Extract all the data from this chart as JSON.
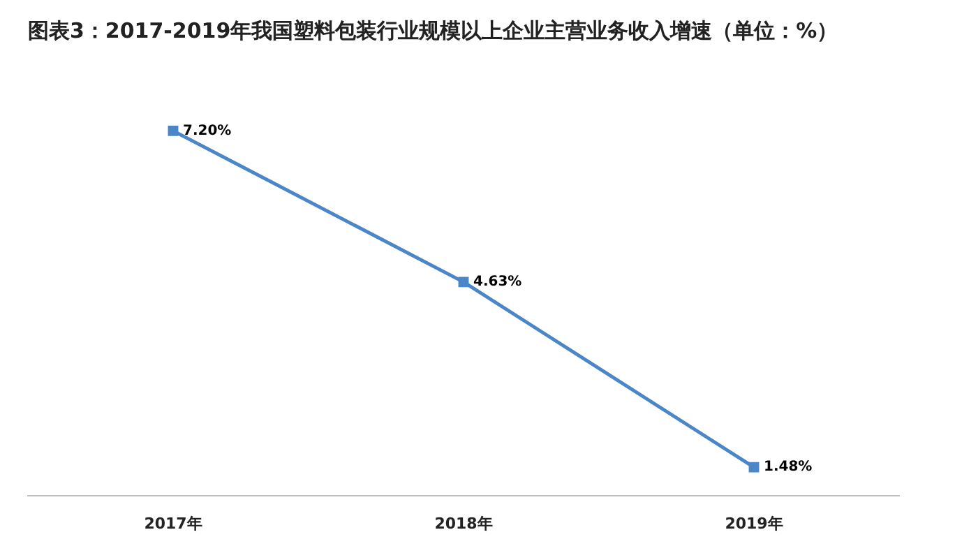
{
  "chart_data": {
    "type": "line",
    "title": "图表3：2017-2019年我国塑料包装行业规模以上企业主营业务收入增速（单位：%）",
    "categories": [
      "2017年",
      "2018年",
      "2019年"
    ],
    "series": [
      {
        "color": "#4a86c8",
        "values": [
          7.2,
          4.63,
          1.48
        ],
        "value_labels": [
          "7.20%",
          "4.63%",
          "1.48%"
        ]
      }
    ],
    "marker": "square",
    "line_style": "solid",
    "grid": false,
    "legend": false,
    "tick_labels": "x"
  }
}
